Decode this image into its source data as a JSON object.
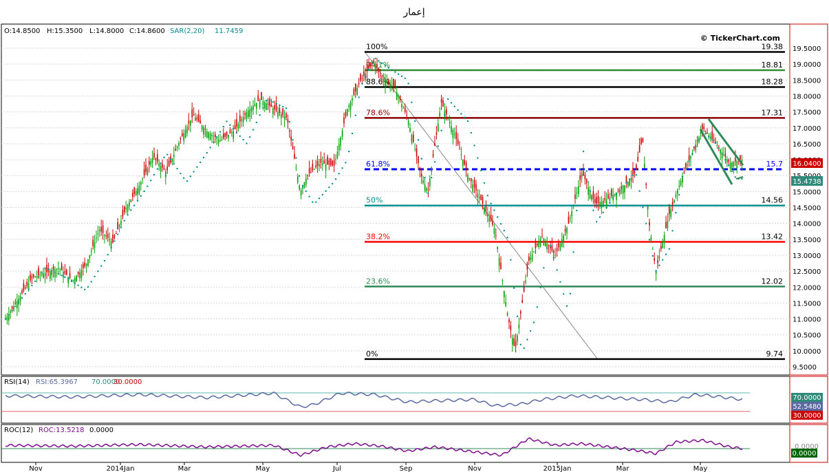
{
  "header": {
    "title": "إعمار"
  },
  "ohlc_line": {
    "open": "O:14.8500",
    "high": "H:15.3500",
    "low": "L:14.8000",
    "close": "C:14.8600",
    "sar_label": "SAR(2,20)",
    "sar_value": "11.7459"
  },
  "watermark": "© TickerChart.com",
  "price_badges": {
    "close": "16.0400",
    "sar": "15.4738"
  },
  "colors": {
    "up": "#00a000",
    "down": "#cc0000",
    "sar": "#008b8b",
    "rsi_line": "#5a6aa0",
    "roc_line": "#7a0d8a",
    "fib_100": "#000000",
    "fib_941": "#2e8b2e",
    "fib_886": "#000000",
    "fib_786": "#8b0000",
    "fib_618": "#0000ff",
    "fib_50": "#009090",
    "fib_382": "#ff0000",
    "fib_236": "#2e8b57",
    "fib_0": "#000000",
    "channel": "#2e8b57",
    "axis_border": "#cc0000"
  },
  "rsi_panel": {
    "label": "RSI(14)",
    "value_text": "RSI:65.3967",
    "upper": "70.0000",
    "lower": "30.0000",
    "badge_upper": "70.0000",
    "badge_value": "52.5480",
    "badge_lower": "30.0000"
  },
  "roc_panel": {
    "label": "ROC(12)",
    "value_text": "ROC:13.5218",
    "zero": "0.0000",
    "badge_zero": "0.0000",
    "axis_top": "0.0000"
  },
  "chart_data": {
    "type": "candlestick",
    "title": "إعمار",
    "x_tick_labels": [
      "Nov",
      "2014Jan",
      "Mar",
      "May",
      "Jul",
      "Sep",
      "Nov",
      "2015Jan",
      "Mar",
      "May"
    ],
    "y_tick_labels": [
      "19.5000",
      "19.0000",
      "18.5000",
      "18.0000",
      "17.5000",
      "17.0000",
      "16.5000",
      "16.0000",
      "15.5000",
      "15.0000",
      "14.5000",
      "14.0000",
      "13.5000",
      "13.0000",
      "12.5000",
      "12.0000",
      "11.5000",
      "11.0000",
      "10.5000",
      "10.0000",
      "9.5000"
    ],
    "ylim": [
      9.3,
      20.0
    ],
    "grid": true,
    "fibonacci_levels": [
      {
        "pct": "100%",
        "value": 19.38,
        "value_label": "19.38"
      },
      {
        "pct": "94.1%",
        "value": 18.81,
        "value_label": "18.81"
      },
      {
        "pct": "88.6%",
        "value": 18.28,
        "value_label": "18.28"
      },
      {
        "pct": "78.6%",
        "value": 17.31,
        "value_label": "17.31"
      },
      {
        "pct": "61.8%",
        "value": 15.7,
        "value_label": "15.7"
      },
      {
        "pct": "50%",
        "value": 14.56,
        "value_label": "14.56"
      },
      {
        "pct": "38.2%",
        "value": 13.42,
        "value_label": "13.42"
      },
      {
        "pct": "23.6%",
        "value": 12.02,
        "value_label": "12.02"
      },
      {
        "pct": "0%",
        "value": 9.74,
        "value_label": "9.74"
      }
    ],
    "price_path": [
      [
        0,
        11.0
      ],
      [
        4,
        12.3
      ],
      [
        8,
        12.6
      ],
      [
        10,
        12.2
      ],
      [
        12,
        12.7
      ],
      [
        14,
        13.8
      ],
      [
        16,
        13.4
      ],
      [
        18,
        14.5
      ],
      [
        20,
        15.2
      ],
      [
        22,
        16.1
      ],
      [
        24,
        15.6
      ],
      [
        26,
        16.6
      ],
      [
        28,
        17.4
      ],
      [
        30,
        16.9
      ],
      [
        32,
        16.6
      ],
      [
        34,
        16.9
      ],
      [
        36,
        17.5
      ],
      [
        38,
        17.9
      ],
      [
        40,
        17.6
      ],
      [
        42,
        17.3
      ],
      [
        44,
        15.0
      ],
      [
        45,
        15.5
      ],
      [
        47,
        15.9
      ],
      [
        49,
        15.8
      ],
      [
        51,
        17.6
      ],
      [
        53,
        18.5
      ],
      [
        55,
        19.1
      ],
      [
        56,
        18.6
      ],
      [
        58,
        18.3
      ],
      [
        60,
        17.3
      ],
      [
        62,
        15.5
      ],
      [
        63,
        15.0
      ],
      [
        65,
        17.8
      ],
      [
        67,
        16.8
      ],
      [
        69,
        15.5
      ],
      [
        71,
        14.7
      ],
      [
        73,
        13.8
      ],
      [
        75,
        11.0
      ],
      [
        76,
        10.0
      ],
      [
        78,
        12.8
      ],
      [
        80,
        13.6
      ],
      [
        82,
        13.0
      ],
      [
        84,
        14.0
      ],
      [
        86,
        15.6
      ],
      [
        88,
        14.6
      ],
      [
        90,
        14.8
      ],
      [
        92,
        15.1
      ],
      [
        94,
        15.6
      ],
      [
        95,
        16.7
      ],
      [
        96,
        14.0
      ],
      [
        97,
        12.5
      ],
      [
        99,
        14.3
      ],
      [
        101,
        15.5
      ],
      [
        103,
        16.5
      ],
      [
        104,
        17.0
      ],
      [
        106,
        16.5
      ],
      [
        108,
        15.9
      ],
      [
        110,
        16.0
      ]
    ],
    "sar_path": [
      [
        0,
        11.0
      ],
      [
        6,
        12.6
      ],
      [
        9,
        12.3
      ],
      [
        12,
        11.9
      ],
      [
        15,
        12.9
      ],
      [
        18,
        14.2
      ],
      [
        21,
        15.1
      ],
      [
        24,
        16.2
      ],
      [
        27,
        15.3
      ],
      [
        30,
        16.2
      ],
      [
        33,
        17.2
      ],
      [
        36,
        16.5
      ],
      [
        39,
        17.9
      ],
      [
        42,
        17.6
      ],
      [
        44,
        15.3
      ],
      [
        46,
        14.6
      ],
      [
        49,
        15.3
      ],
      [
        51,
        16.0
      ],
      [
        53,
        18.3
      ],
      [
        55,
        19.2
      ],
      [
        57,
        18.9
      ],
      [
        60,
        18.5
      ],
      [
        63,
        14.9
      ],
      [
        66,
        17.9
      ],
      [
        69,
        17.2
      ],
      [
        72,
        14.8
      ],
      [
        75,
        13.5
      ],
      [
        77,
        9.9
      ],
      [
        79,
        11.0
      ],
      [
        81,
        13.5
      ],
      [
        84,
        11.2
      ],
      [
        86,
        16.5
      ],
      [
        88,
        14.0
      ],
      [
        91,
        14.9
      ],
      [
        94,
        15.6
      ],
      [
        97,
        12.5
      ],
      [
        99,
        13.2
      ],
      [
        101,
        15.5
      ],
      [
        104,
        16.9
      ],
      [
        106,
        16.5
      ],
      [
        109,
        15.4
      ]
    ],
    "rsi_path": [
      [
        0,
        58
      ],
      [
        10,
        56
      ],
      [
        20,
        60
      ],
      [
        30,
        55
      ],
      [
        40,
        62
      ],
      [
        44,
        40
      ],
      [
        46,
        44
      ],
      [
        50,
        62
      ],
      [
        55,
        60
      ],
      [
        60,
        48
      ],
      [
        64,
        50
      ],
      [
        70,
        52
      ],
      [
        73,
        42
      ],
      [
        77,
        45
      ],
      [
        80,
        52
      ],
      [
        85,
        58
      ],
      [
        90,
        55
      ],
      [
        95,
        52
      ],
      [
        99,
        48
      ],
      [
        103,
        60
      ],
      [
        106,
        57
      ],
      [
        110,
        52
      ]
    ],
    "roc_path": [
      [
        0,
        4
      ],
      [
        10,
        3
      ],
      [
        20,
        5
      ],
      [
        30,
        2
      ],
      [
        40,
        4
      ],
      [
        44,
        -8
      ],
      [
        48,
        2
      ],
      [
        52,
        6
      ],
      [
        56,
        3
      ],
      [
        60,
        -3
      ],
      [
        64,
        2
      ],
      [
        70,
        -4
      ],
      [
        74,
        -8
      ],
      [
        78,
        12
      ],
      [
        82,
        4
      ],
      [
        86,
        6
      ],
      [
        90,
        2
      ],
      [
        94,
        -2
      ],
      [
        97,
        -6
      ],
      [
        100,
        8
      ],
      [
        104,
        10
      ],
      [
        108,
        2
      ],
      [
        110,
        0
      ]
    ]
  }
}
